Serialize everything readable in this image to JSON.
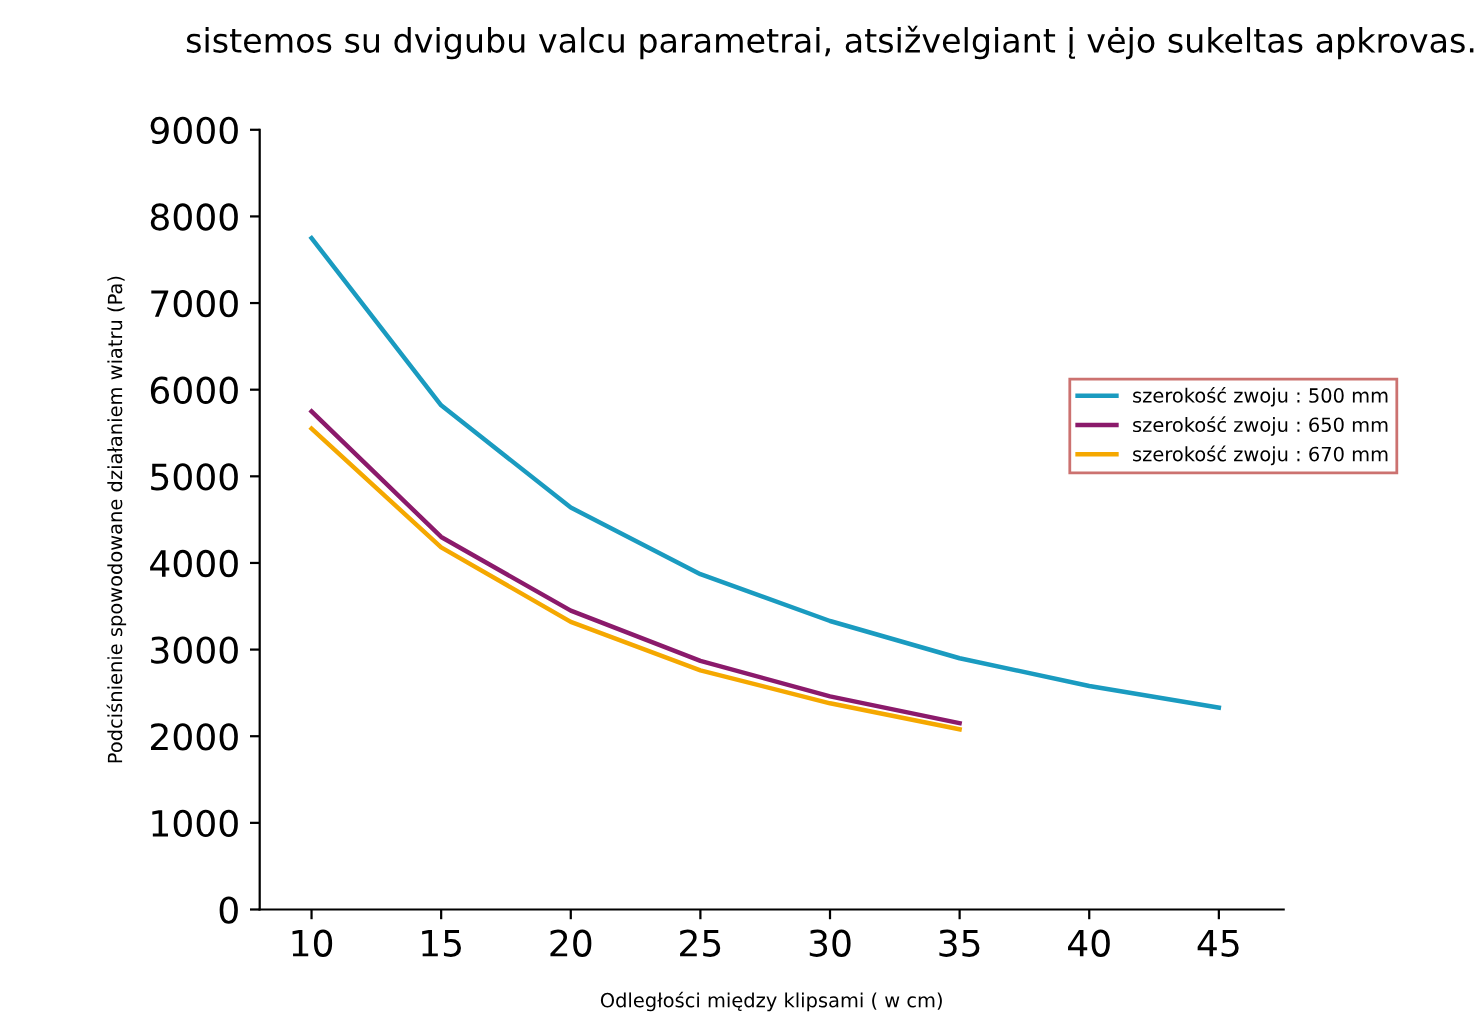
{
  "chart_data": {
    "type": "line",
    "title": "sistemos su dvigubu valcu parametrai, atsižvelgiant į vėjo sukeltas apkrovas.",
    "xlabel": "Odległości między klipsami ( w cm)",
    "ylabel": "Podciśnienie spowodowane działaniem wiatru (Pa)",
    "x": [
      10,
      15,
      20,
      25,
      30,
      35,
      40,
      45
    ],
    "series": [
      {
        "name": "szerokość zwoju : 500 mm",
        "color": "#1a9bc0",
        "values": [
          7750,
          5820,
          4640,
          3870,
          3330,
          2900,
          2580,
          2330
        ]
      },
      {
        "name": "szerokość zwoju : 650 mm",
        "color": "#8b1a6b",
        "values": [
          5750,
          4300,
          3450,
          2870,
          2460,
          2150,
          null,
          null
        ]
      },
      {
        "name": "szerokość zwoju : 670 mm",
        "color": "#f5a800",
        "values": [
          5550,
          4180,
          3320,
          2760,
          2380,
          2080,
          null,
          null
        ]
      }
    ],
    "xlim": [
      8,
      47.5
    ],
    "ylim": [
      0,
      9000
    ],
    "xticks": [
      10,
      15,
      20,
      25,
      30,
      35,
      40,
      45
    ],
    "yticks": [
      0,
      1000,
      2000,
      3000,
      4000,
      5000,
      6000,
      7000,
      8000,
      9000
    ],
    "grid": false,
    "legend": "right",
    "marker": "none",
    "line_style": "solid"
  }
}
